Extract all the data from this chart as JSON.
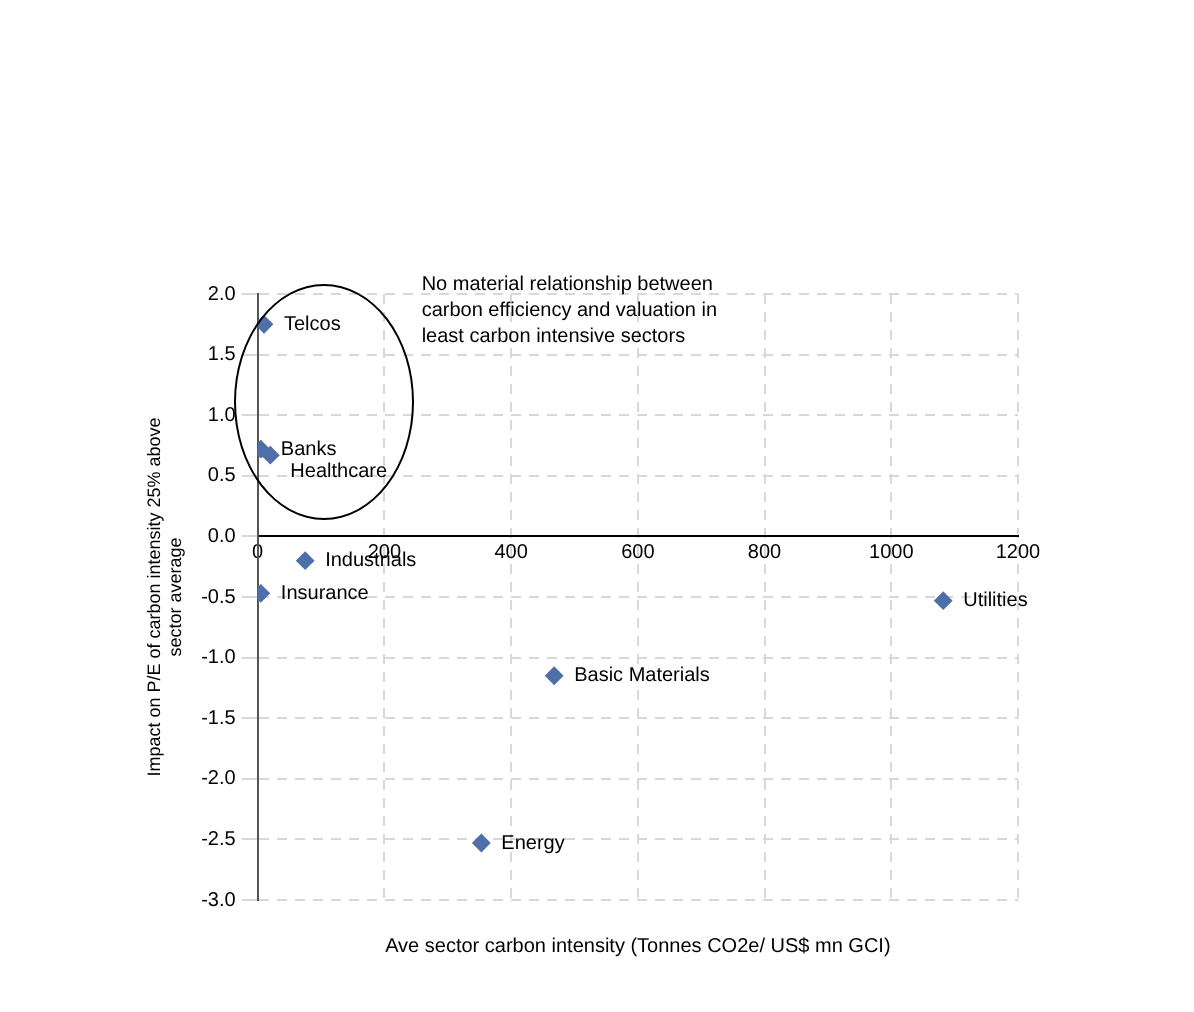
{
  "chart_data": {
    "type": "scatter",
    "xlabel": "Ave sector carbon intensity (Tonnes CO2e/ US$ mn GCI)",
    "ylabel": "Impact on P/E of carbon intensity 25% above sector average",
    "series": [
      {
        "color": "#4f6fa8",
        "x": [
          10,
          5,
          20,
          75,
          5,
          1082,
          468,
          353
        ],
        "values": [
          1.75,
          0.72,
          0.67,
          -0.2,
          -0.47,
          -0.53,
          -1.15,
          -2.53
        ]
      }
    ],
    "xlim": [
      0,
      1200
    ],
    "xticks": [
      0,
      200,
      400,
      600,
      800,
      1000,
      1200
    ],
    "ylim": [
      -3,
      2
    ],
    "yticks": [
      {
        "value": -3,
        "label": "-3.0"
      },
      {
        "value": -2.5,
        "label": "-2.5"
      },
      {
        "value": -2,
        "label": "-2.0"
      },
      {
        "value": -1.5,
        "label": "-1.5"
      },
      {
        "value": -1,
        "label": "-1.0"
      },
      {
        "value": -0.5,
        "label": "-0.5"
      },
      {
        "value": 0,
        "label": "0.0"
      },
      {
        "value": 0.5,
        "label": "0.5"
      },
      {
        "value": 1,
        "label": "1.0"
      },
      {
        "value": 1.5,
        "label": "1.5"
      },
      {
        "value": 2,
        "label": "2.0"
      }
    ],
    "grid": true,
    "marker": "diamond",
    "legend": false,
    "annotations": [
      {
        "text": "Telcos",
        "x": 10,
        "y": 1.75
      },
      {
        "text": "Banks",
        "x": 5,
        "y": 0.72
      },
      {
        "text": "Healthcare",
        "x": 20,
        "y": 0.67
      },
      {
        "text": "Industrials",
        "x": 75,
        "y": -0.2
      },
      {
        "text": "Insurance",
        "x": 5,
        "y": -0.47
      },
      {
        "text": "Utilities",
        "x": 1082,
        "y": -0.53
      },
      {
        "text": "Basic Materials",
        "x": 468,
        "y": -1.15
      },
      {
        "text": "Energy",
        "x": 353,
        "y": -2.53
      },
      "No material relationship between carbon efficiency and valuation in least carbon intensive sectors"
    ]
  }
}
